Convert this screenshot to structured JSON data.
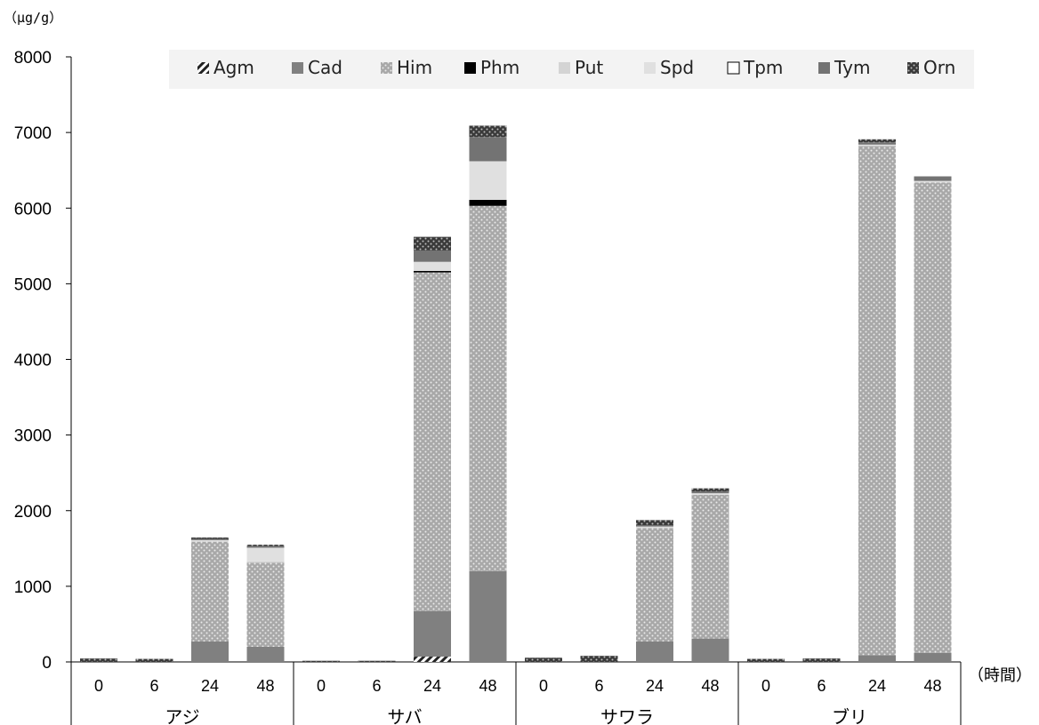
{
  "chart_data": {
    "type": "bar",
    "stacked": true,
    "ylabel": "（μg/g）",
    "xlabel": "（時間）",
    "ylim": [
      0,
      8000
    ],
    "yticks": [
      0,
      1000,
      2000,
      3000,
      4000,
      5000,
      6000,
      7000,
      8000
    ],
    "grid": false,
    "legend_position": "top",
    "groups": [
      {
        "name": "アジ",
        "times": [
          "0",
          "6",
          "24",
          "48"
        ]
      },
      {
        "name": "サバ",
        "times": [
          "0",
          "6",
          "24",
          "48"
        ]
      },
      {
        "name": "サワラ",
        "times": [
          "0",
          "6",
          "24",
          "48"
        ]
      },
      {
        "name": "ブリ",
        "times": [
          "0",
          "6",
          "24",
          "48"
        ]
      }
    ],
    "series": [
      {
        "name": "Agm",
        "color": "#333333",
        "pattern": "hatch",
        "values": [
          0,
          0,
          0,
          0,
          0,
          0,
          70,
          0,
          0,
          0,
          0,
          0,
          0,
          0,
          0,
          0
        ]
      },
      {
        "name": "Cad",
        "color": "#808080",
        "pattern": "solid",
        "values": [
          0,
          0,
          270,
          200,
          0,
          0,
          600,
          1200,
          0,
          0,
          270,
          310,
          0,
          0,
          90,
          120
        ]
      },
      {
        "name": "Him",
        "color": "#b0b0b0",
        "pattern": "dots",
        "values": [
          0,
          0,
          1320,
          1110,
          0,
          0,
          4480,
          4830,
          0,
          0,
          1500,
          1900,
          0,
          0,
          6730,
          6220
        ]
      },
      {
        "name": "Phm",
        "color": "#000000",
        "pattern": "solid",
        "values": [
          0,
          0,
          0,
          0,
          0,
          0,
          20,
          80,
          0,
          0,
          0,
          0,
          0,
          0,
          0,
          0
        ]
      },
      {
        "name": "Put",
        "color": "#d4d4d4",
        "pattern": "solid",
        "values": [
          0,
          0,
          0,
          20,
          0,
          0,
          0,
          0,
          0,
          0,
          0,
          0,
          0,
          0,
          0,
          0
        ]
      },
      {
        "name": "Spd",
        "color": "#e0e0e0",
        "pattern": "solid",
        "values": [
          0,
          0,
          20,
          180,
          0,
          0,
          120,
          510,
          0,
          0,
          20,
          20,
          0,
          0,
          20,
          20
        ]
      },
      {
        "name": "Tpm",
        "color": "#ffffff",
        "pattern": "outline",
        "values": [
          0,
          0,
          0,
          0,
          0,
          0,
          0,
          0,
          0,
          0,
          0,
          0,
          0,
          0,
          0,
          0
        ]
      },
      {
        "name": "Tym",
        "color": "#737373",
        "pattern": "solid",
        "values": [
          0,
          0,
          15,
          20,
          0,
          0,
          150,
          320,
          0,
          0,
          15,
          25,
          0,
          0,
          30,
          60
        ]
      },
      {
        "name": "Orn",
        "color": "#404040",
        "pattern": "dots",
        "values": [
          45,
          40,
          20,
          20,
          15,
          15,
          180,
          150,
          55,
          80,
          70,
          40,
          40,
          45,
          40,
          0
        ]
      }
    ]
  }
}
